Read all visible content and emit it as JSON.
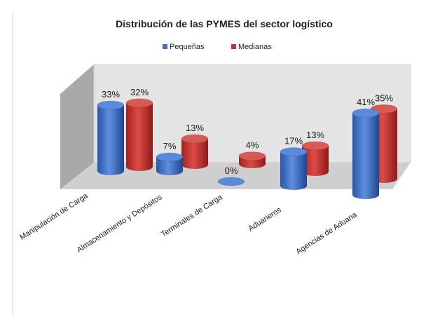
{
  "colors": {
    "pequenas": "#3c6fc7",
    "medianas": "#c4302d",
    "back_wall": "#e4e4e4",
    "side_wall": "#a9a9a9",
    "floor": "#cfcfcf"
  },
  "chart_data": {
    "type": "bar",
    "style": "3d-cylinder",
    "title": "Distribución de las PYMES del sector logístico",
    "legend_position": "top",
    "categories": [
      "Manipulación de Carga",
      "Almacenamiento y Depósitos",
      "Terminales de Carga",
      "Aduaneros",
      "Agencias de Aduana"
    ],
    "series": [
      {
        "name": "Pequeñas",
        "values": [
          33,
          7,
          0,
          17,
          41
        ],
        "labels": [
          "33%",
          "7%",
          "0%",
          "17%",
          "41%"
        ]
      },
      {
        "name": "Medianas",
        "values": [
          32,
          13,
          4,
          13,
          35
        ],
        "labels": [
          "32%",
          "13%",
          "4%",
          "13%",
          "35%"
        ]
      }
    ],
    "ylim": [
      0,
      45
    ]
  }
}
